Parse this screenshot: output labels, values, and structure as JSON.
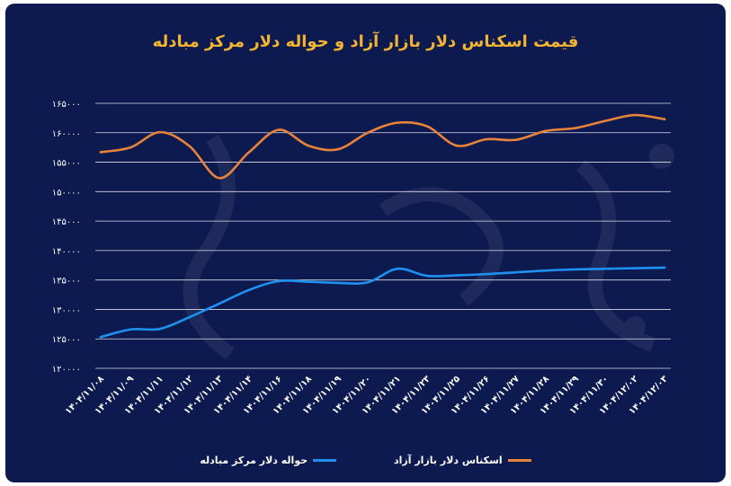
{
  "chart_data": {
    "type": "line",
    "title": "قیمت اسکناس دلار بازار آزاد و حواله دلار مرکز مبادله",
    "categories": [
      "۱۴۰۴/۱۱/۰۸",
      "۱۴۰۴/۱۱/۰۹",
      "۱۴۰۴/۱۱/۱۱",
      "۱۴۰۴/۱۱/۱۲",
      "۱۴۰۴/۱۱/۱۳",
      "۱۴۰۴/۱۱/۱۴",
      "۱۴۰۴/۱۱/۱۶",
      "۱۴۰۴/۱۱/۱۸",
      "۱۴۰۴/۱۱/۱۹",
      "۱۴۰۴/۱۱/۲۰",
      "۱۴۰۴/۱۱/۲۱",
      "۱۴۰۴/۱۱/۲۳",
      "۱۴۰۴/۱۱/۲۵",
      "۱۴۰۴/۱۱/۲۶",
      "۱۴۰۴/۱۱/۲۷",
      "۱۴۰۴/۱۱/۲۸",
      "۱۴۰۴/۱۱/۲۹",
      "۱۴۰۴/۱۱/۳۰",
      "۱۴۰۴/۱۲/۰۲",
      "۱۴۰۴/۱۲/۰۳"
    ],
    "y_ticks": [
      {
        "value": 120000,
        "label": "۱۲۰۰۰۰"
      },
      {
        "value": 125000,
        "label": "۱۲۵۰۰۰"
      },
      {
        "value": 130000,
        "label": "۱۳۰۰۰۰"
      },
      {
        "value": 135000,
        "label": "۱۳۵۰۰۰"
      },
      {
        "value": 140000,
        "label": "۱۴۰۰۰۰"
      },
      {
        "value": 145000,
        "label": "۱۴۵۰۰۰"
      },
      {
        "value": 150000,
        "label": "۱۵۰۰۰۰"
      },
      {
        "value": 155000,
        "label": "۱۵۵۰۰۰"
      },
      {
        "value": 160000,
        "label": "۱۶۰۰۰۰"
      },
      {
        "value": 165000,
        "label": "۱۶۵۰۰۰"
      }
    ],
    "ylim": [
      120000,
      165000
    ],
    "grid": true,
    "legend_position": "bottom",
    "series": [
      {
        "name": "اسکناس دلار بازار آزاد",
        "color": "#e8833a",
        "values": [
          156700,
          157500,
          160100,
          157700,
          152300,
          156700,
          160500,
          157800,
          157200,
          160000,
          161700,
          161100,
          157800,
          158900,
          158800,
          160300,
          160800,
          162000,
          163000,
          162300
        ]
      },
      {
        "name": "حواله دلار مرکز مبادله",
        "color": "#1e90ef",
        "values": [
          125300,
          126600,
          126700,
          128700,
          131000,
          133300,
          134800,
          134700,
          134500,
          134600,
          136900,
          135700,
          135800,
          136000,
          136300,
          136600,
          136800,
          136900,
          137000,
          137100
        ]
      }
    ]
  }
}
